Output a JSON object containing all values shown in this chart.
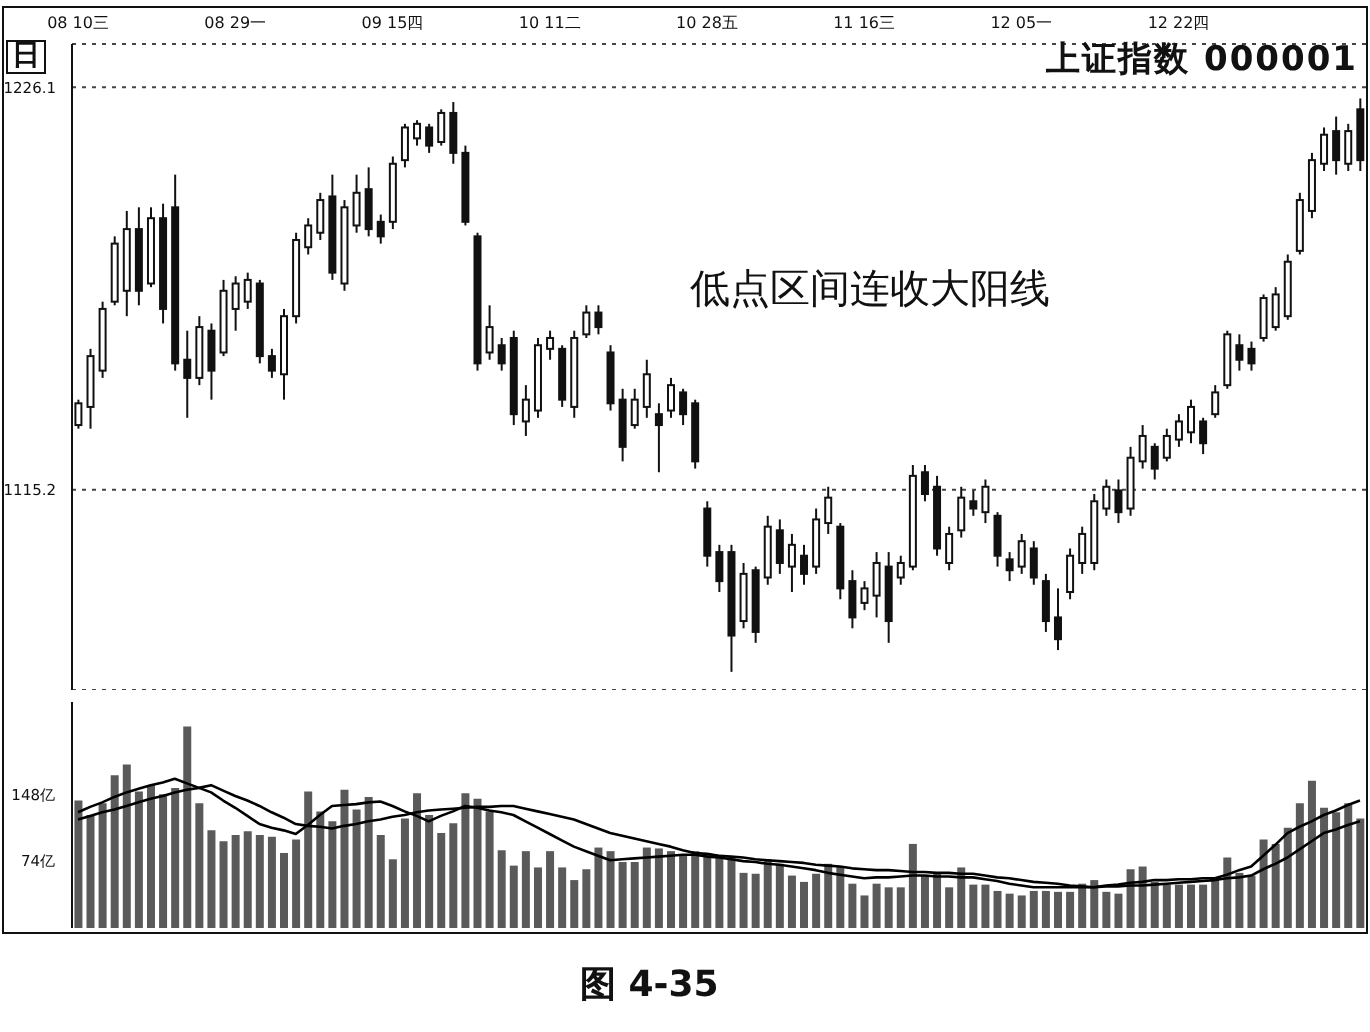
{
  "chart_data": [
    {
      "type": "candlestick",
      "title": "上证指数 000001",
      "annotations": [
        "日",
        "低点区间连收大阳线",
        "图 4-35"
      ],
      "color": "#111111",
      "categories": [
        "08 10三",
        null,
        null,
        null,
        null,
        null,
        null,
        null,
        null,
        null,
        null,
        null,
        null,
        "08 29一",
        null,
        null,
        null,
        null,
        null,
        null,
        null,
        null,
        null,
        null,
        null,
        null,
        "09 15四",
        null,
        null,
        null,
        null,
        null,
        null,
        null,
        null,
        null,
        null,
        null,
        null,
        "10 11二",
        null,
        null,
        null,
        null,
        null,
        null,
        null,
        null,
        null,
        null,
        null,
        null,
        "10 28五",
        null,
        null,
        null,
        null,
        null,
        null,
        null,
        null,
        null,
        null,
        null,
        null,
        "11 16三",
        null,
        null,
        null,
        null,
        null,
        null,
        null,
        null,
        null,
        null,
        null,
        null,
        "12 05一",
        null,
        null,
        null,
        null,
        null,
        null,
        null,
        null,
        null,
        null,
        null,
        null,
        "12 22四",
        null,
        null,
        null,
        null,
        null,
        null,
        null,
        null,
        null,
        null,
        null,
        null,
        null,
        null,
        null
      ],
      "ohlc": [
        [
          1133,
          1140,
          1132,
          1139
        ],
        [
          1138,
          1154,
          1132,
          1152
        ],
        [
          1148,
          1167,
          1146,
          1165
        ],
        [
          1167,
          1185,
          1166,
          1183
        ],
        [
          1170,
          1192,
          1163,
          1187
        ],
        [
          1187,
          1193,
          1166,
          1170
        ],
        [
          1172,
          1193,
          1171,
          1190
        ],
        [
          1190,
          1194,
          1161,
          1165
        ],
        [
          1193,
          1202,
          1148,
          1150
        ],
        [
          1151,
          1159,
          1135,
          1146
        ],
        [
          1146,
          1163,
          1144,
          1160
        ],
        [
          1159,
          1161,
          1140,
          1148
        ],
        [
          1153,
          1173,
          1152,
          1170
        ],
        [
          1165,
          1174,
          1159,
          1172
        ],
        [
          1167,
          1175,
          1165,
          1173
        ],
        [
          1172,
          1173,
          1150,
          1152
        ],
        [
          1152,
          1154,
          1146,
          1148
        ],
        [
          1147,
          1165,
          1140,
          1163
        ],
        [
          1163,
          1186,
          1161,
          1184
        ],
        [
          1182,
          1190,
          1180,
          1188
        ],
        [
          1186,
          1197,
          1184,
          1195
        ],
        [
          1196,
          1202,
          1173,
          1175
        ],
        [
          1172,
          1195,
          1170,
          1193
        ],
        [
          1188,
          1202,
          1186,
          1197
        ],
        [
          1198,
          1204,
          1185,
          1187
        ],
        [
          1189,
          1191,
          1183,
          1185
        ],
        [
          1189,
          1207,
          1187,
          1205
        ],
        [
          1206,
          1216,
          1204,
          1215
        ],
        [
          1212,
          1217,
          1210,
          1216
        ],
        [
          1215,
          1216,
          1208,
          1210
        ],
        [
          1211,
          1220,
          1210,
          1219
        ],
        [
          1219,
          1222,
          1205,
          1208
        ],
        [
          1208,
          1210,
          1188,
          1189
        ],
        [
          1185,
          1186,
          1148,
          1150
        ],
        [
          1153,
          1166,
          1151,
          1160
        ],
        [
          1155,
          1157,
          1148,
          1150
        ],
        [
          1157,
          1159,
          1133,
          1136
        ],
        [
          1134,
          1144,
          1130,
          1140
        ],
        [
          1137,
          1157,
          1135,
          1155
        ],
        [
          1154,
          1159,
          1151,
          1157
        ],
        [
          1154,
          1155,
          1138,
          1140
        ],
        [
          1138,
          1159,
          1135,
          1157
        ],
        [
          1158,
          1166,
          1157,
          1164
        ],
        [
          1164,
          1166,
          1158,
          1160
        ],
        [
          1153,
          1155,
          1137,
          1139
        ],
        [
          1140,
          1143,
          1123,
          1127
        ],
        [
          1133,
          1143,
          1132,
          1140
        ],
        [
          1138,
          1151,
          1135,
          1147
        ],
        [
          1136,
          1139,
          1120,
          1133
        ],
        [
          1137,
          1146,
          1135,
          1144
        ],
        [
          1142,
          1143,
          1133,
          1136
        ],
        [
          1139,
          1140,
          1121,
          1123
        ],
        [
          1110,
          1112,
          1094,
          1097
        ],
        [
          1098,
          1100,
          1087,
          1090
        ],
        [
          1098,
          1100,
          1065,
          1075
        ],
        [
          1079,
          1095,
          1077,
          1092
        ],
        [
          1093,
          1094,
          1073,
          1076
        ],
        [
          1091,
          1108,
          1089,
          1105
        ],
        [
          1104,
          1107,
          1092,
          1095
        ],
        [
          1094,
          1103,
          1087,
          1100
        ],
        [
          1097,
          1100,
          1089,
          1092
        ],
        [
          1094,
          1110,
          1092,
          1107
        ],
        [
          1106,
          1116,
          1103,
          1113
        ],
        [
          1105,
          1106,
          1085,
          1088
        ],
        [
          1090,
          1093,
          1077,
          1080
        ],
        [
          1084,
          1090,
          1082,
          1088
        ],
        [
          1086,
          1098,
          1080,
          1095
        ],
        [
          1094,
          1098,
          1073,
          1079
        ],
        [
          1091,
          1097,
          1089,
          1095
        ],
        [
          1094,
          1122,
          1093,
          1119
        ],
        [
          1120,
          1122,
          1112,
          1114
        ],
        [
          1116,
          1119,
          1097,
          1099
        ],
        [
          1095,
          1105,
          1093,
          1103
        ],
        [
          1104,
          1116,
          1102,
          1113
        ],
        [
          1112,
          1115,
          1108,
          1110
        ],
        [
          1109,
          1118,
          1106,
          1116
        ],
        [
          1108,
          1109,
          1094,
          1097
        ],
        [
          1096,
          1098,
          1090,
          1093
        ],
        [
          1094,
          1103,
          1092,
          1101
        ],
        [
          1099,
          1101,
          1089,
          1091
        ],
        [
          1090,
          1092,
          1076,
          1079
        ],
        [
          1080,
          1088,
          1071,
          1074
        ],
        [
          1087,
          1099,
          1085,
          1097
        ],
        [
          1095,
          1105,
          1092,
          1103
        ],
        [
          1095,
          1114,
          1093,
          1112
        ],
        [
          1110,
          1118,
          1108,
          1116
        ],
        [
          1115,
          1118,
          1106,
          1109
        ],
        [
          1110,
          1127,
          1108,
          1124
        ],
        [
          1123,
          1133,
          1121,
          1130
        ],
        [
          1127,
          1128,
          1118,
          1121
        ],
        [
          1124,
          1132,
          1123,
          1130
        ],
        [
          1129,
          1136,
          1127,
          1134
        ],
        [
          1131,
          1140,
          1128,
          1138
        ],
        [
          1134,
          1135,
          1125,
          1128
        ],
        [
          1136,
          1144,
          1135,
          1142
        ],
        [
          1144,
          1159,
          1143,
          1158
        ],
        [
          1155,
          1158,
          1148,
          1151
        ],
        [
          1154,
          1156,
          1148,
          1150
        ],
        [
          1157,
          1169,
          1156,
          1168
        ],
        [
          1160,
          1171,
          1159,
          1169
        ],
        [
          1163,
          1180,
          1162,
          1178
        ],
        [
          1181,
          1197,
          1180,
          1195
        ],
        [
          1192,
          1208,
          1190,
          1206
        ],
        [
          1205,
          1215,
          1203,
          1213
        ],
        [
          1214,
          1218,
          1202,
          1206
        ],
        [
          1205,
          1216,
          1203,
          1214
        ],
        [
          1220,
          1223,
          1203,
          1206
        ]
      ],
      "ylim": [
        1060,
        1238
      ],
      "yticks": [
        1226.1,
        1115.2
      ],
      "grid": "y"
    },
    {
      "type": "bar",
      "categories": [
        null,
        null,
        null,
        null,
        null,
        null,
        null,
        null,
        null,
        null,
        null,
        null,
        null,
        null,
        null,
        null,
        null,
        null,
        null,
        null,
        null,
        null,
        null,
        null,
        null,
        null,
        null,
        null,
        null,
        null,
        null,
        null,
        null,
        null,
        null,
        null,
        null,
        null,
        null,
        null,
        null,
        null,
        null,
        null,
        null,
        null,
        null,
        null,
        null,
        null,
        null,
        null,
        null,
        null,
        null,
        null,
        null,
        null,
        null,
        null,
        null,
        null,
        null,
        null,
        null,
        null,
        null,
        null,
        null,
        null,
        null,
        null,
        null,
        null,
        null,
        null,
        null,
        null,
        null,
        null,
        null,
        null,
        null,
        null,
        null,
        null,
        null,
        null,
        null,
        null,
        null,
        null,
        null,
        null,
        null,
        null,
        null,
        null,
        null,
        null,
        null,
        null,
        null,
        null,
        null,
        null,
        null
      ],
      "ylim": [
        0,
        250
      ],
      "yticks": [
        {
          "value": 148,
          "label": "148亿"
        },
        {
          "value": 74,
          "label": "74亿"
        }
      ],
      "series": [
        {
          "type": "bar",
          "color": "#5a5a5a",
          "values": [
            141,
            125,
            138,
            169,
            181,
            151,
            158,
            148,
            155,
            223,
            138,
            108,
            96,
            103,
            107,
            103,
            101,
            83,
            98,
            151,
            129,
            118,
            153,
            131,
            145,
            103,
            76,
            121,
            149,
            125,
            105,
            116,
            149,
            143,
            129,
            86,
            69,
            85,
            67,
            85,
            67,
            53,
            65,
            89,
            85,
            73,
            73,
            89,
            88,
            85,
            81,
            85,
            83,
            81,
            78,
            61,
            60,
            76,
            71,
            58,
            51,
            60,
            71,
            68,
            49,
            36,
            49,
            45,
            45,
            93,
            58,
            61,
            45,
            67,
            48,
            48,
            41,
            38,
            36,
            41,
            41,
            40,
            40,
            49,
            53,
            40,
            38,
            65,
            68,
            51,
            48,
            48,
            48,
            48,
            56,
            78,
            61,
            58,
            98,
            93,
            111,
            138,
            163,
            133,
            128,
            138,
            121
          ]
        },
        {
          "type": "line",
          "color": "#000000",
          "values": [
            128,
            134,
            139,
            145,
            150,
            154,
            158,
            161,
            165,
            160,
            155,
            150,
            141,
            133,
            124,
            115,
            111,
            108,
            104,
            114,
            125,
            135,
            136,
            137,
            139,
            140,
            135,
            129,
            124,
            118,
            124,
            129,
            135,
            133,
            130,
            128,
            125,
            118,
            111,
            104,
            97,
            90,
            85,
            80,
            75,
            76,
            77,
            78,
            79,
            80,
            81,
            81,
            79,
            78,
            76,
            74,
            73,
            71,
            70,
            68,
            66,
            64,
            61,
            59,
            57,
            55,
            56,
            56,
            57,
            58,
            58,
            57,
            57,
            56,
            56,
            54,
            52,
            49,
            47,
            45,
            45,
            45,
            45,
            45,
            45,
            47,
            48,
            50,
            51,
            53,
            53,
            54,
            54,
            55,
            55,
            59,
            64,
            68,
            80,
            92,
            105,
            112,
            118,
            125,
            130,
            136,
            141
          ]
        },
        {
          "type": "line",
          "color": "#000000",
          "values": [
            120,
            124,
            128,
            131,
            135,
            139,
            143,
            146,
            150,
            153,
            155,
            158,
            152,
            146,
            141,
            135,
            128,
            122,
            115,
            113,
            112,
            110,
            113,
            115,
            118,
            120,
            123,
            125,
            128,
            130,
            131,
            132,
            133,
            134,
            134,
            135,
            135,
            132,
            129,
            126,
            123,
            120,
            115,
            110,
            105,
            102,
            99,
            96,
            93,
            90,
            86,
            83,
            82,
            80,
            79,
            78,
            76,
            75,
            74,
            73,
            72,
            70,
            69,
            68,
            66,
            65,
            64,
            64,
            63,
            62,
            62,
            61,
            61,
            60,
            60,
            58,
            56,
            55,
            53,
            51,
            50,
            49,
            47,
            46,
            45,
            46,
            46,
            47,
            47,
            48,
            49,
            50,
            51,
            52,
            53,
            55,
            56,
            58,
            65,
            71,
            78,
            87,
            96,
            105,
            109,
            114,
            118
          ]
        }
      ]
    }
  ]
}
